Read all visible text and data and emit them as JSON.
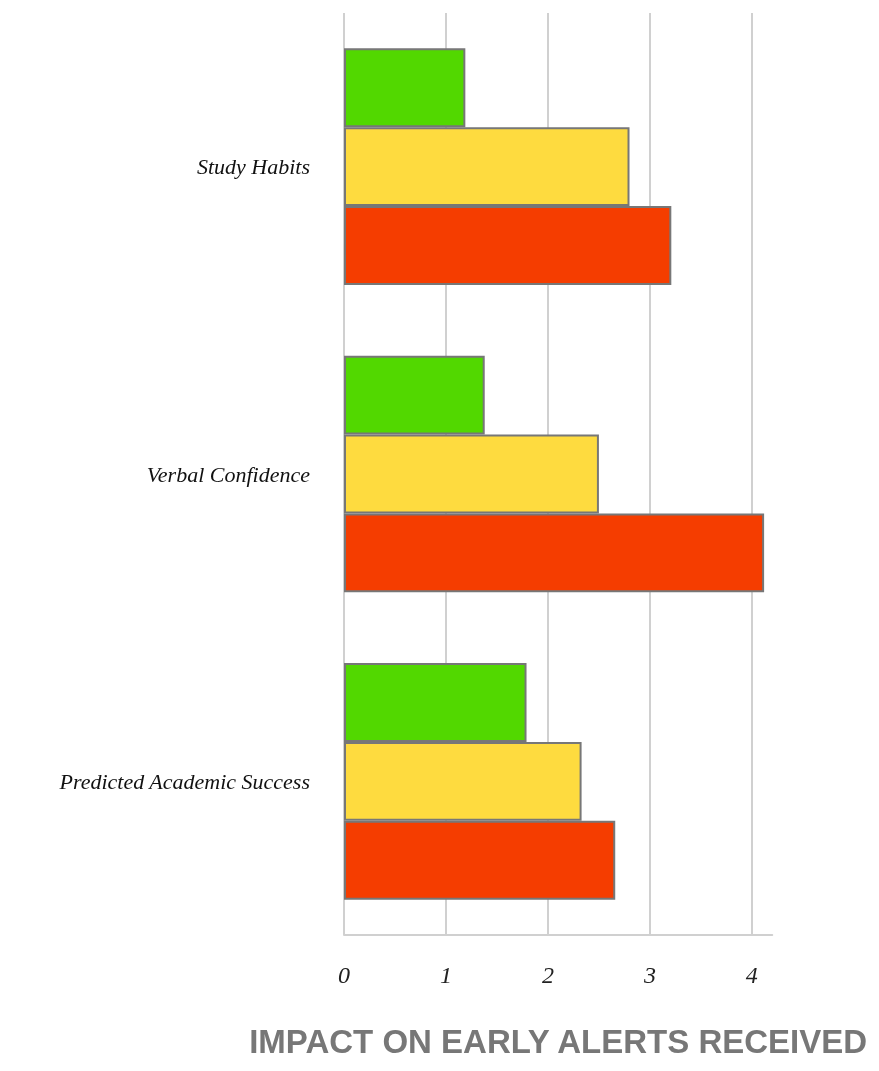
{
  "chart_data": {
    "type": "bar",
    "orientation": "horizontal",
    "xlabel": "IMPACT ON EARLY ALERTS RECEIVED",
    "categories": [
      "Study Habits",
      "Verbal Confidence",
      "Predicted Academic Success"
    ],
    "series": [
      {
        "color": "#52d800",
        "values": [
          1.19,
          1.38,
          1.79
        ]
      },
      {
        "color": "#fedb3f",
        "values": [
          2.8,
          2.5,
          2.33
        ]
      },
      {
        "color": "#f53d00",
        "values": [
          3.21,
          4.12,
          2.66
        ]
      }
    ],
    "xlim": [
      0,
      4.2
    ],
    "xticks": [
      0,
      1,
      2,
      3,
      4
    ],
    "grid": "x"
  }
}
